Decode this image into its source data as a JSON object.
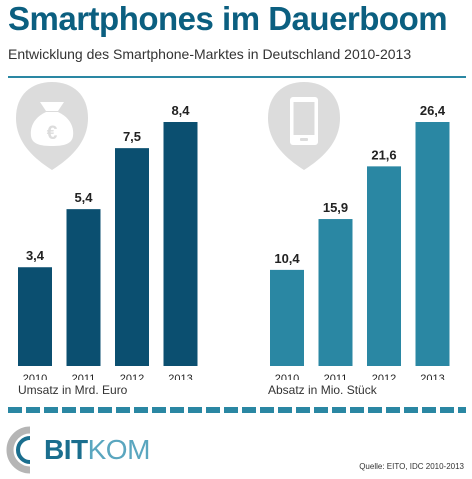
{
  "header": {
    "title": "Smartphones im Dauerboom",
    "subtitle": "Entwicklung des Smartphone-Marktes in Deutschland 2010-2013"
  },
  "chart_data": [
    {
      "type": "bar",
      "categories": [
        "2010",
        "2011",
        "2012",
        "2013"
      ],
      "values": [
        3.4,
        5.4,
        7.5,
        8.4
      ],
      "value_labels": [
        "3,4",
        "5,4",
        "7,5",
        "8,4"
      ],
      "xlabel": "Umsatz in Mrd. Euro",
      "ylim": [
        0,
        8.4
      ],
      "grid": false,
      "icon": "money-bag-euro-icon",
      "color": "#0b4f70"
    },
    {
      "type": "bar",
      "categories": [
        "2010",
        "2011",
        "2012",
        "2013"
      ],
      "values": [
        10.4,
        15.9,
        21.6,
        26.4
      ],
      "value_labels": [
        "10,4",
        "15,9",
        "21,6",
        "26,4"
      ],
      "xlabel": "Absatz in Mio. Stück",
      "ylim": [
        0,
        26.4
      ],
      "grid": false,
      "icon": "smartphone-icon",
      "color": "#2a87a3"
    }
  ],
  "footer": {
    "logo_main": "BIT",
    "logo_light": "KOM",
    "source": "Quelle: EITO, IDC 2010-2013"
  },
  "colors": {
    "title": "#0b5f80",
    "accent": "#2a87a3",
    "icon_bg": "#dcdcdc"
  }
}
